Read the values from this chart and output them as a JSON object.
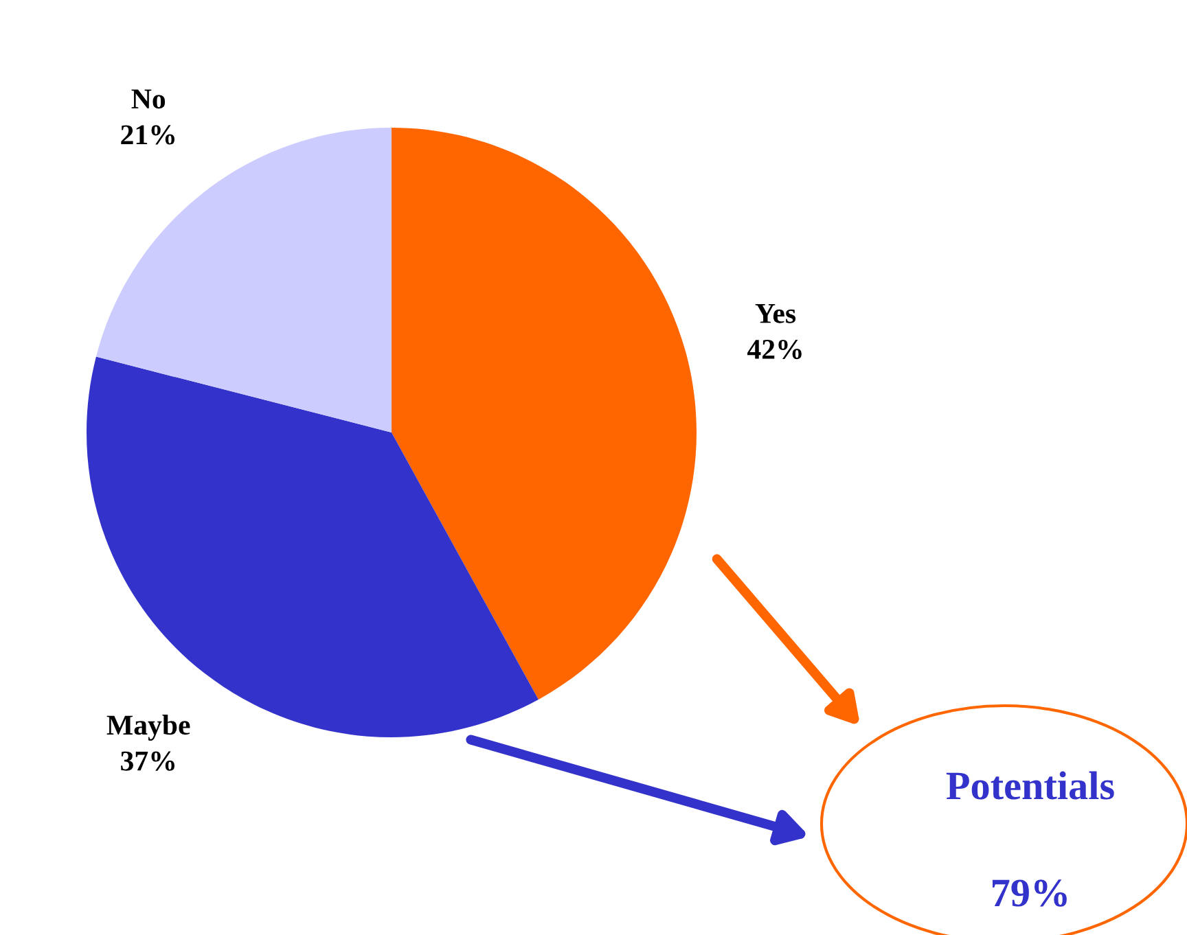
{
  "chart_data": {
    "type": "pie",
    "categories": [
      "Yes",
      "Maybe",
      "No"
    ],
    "values": [
      42,
      37,
      21
    ],
    "colors": [
      "#ff6600",
      "#3333cc",
      "#ccccff"
    ],
    "value_labels": [
      "42%",
      "37%",
      "21%"
    ],
    "annotations": [
      "Potentials",
      "79%"
    ]
  }
}
